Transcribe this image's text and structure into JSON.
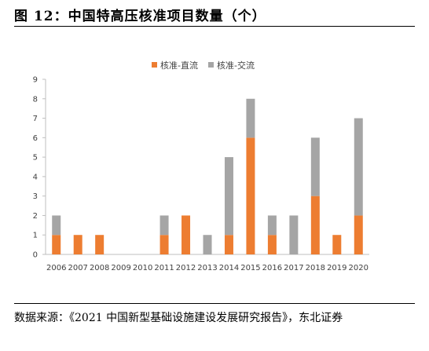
{
  "title": "图 12：中国特高压核准项目数量（个）",
  "source": "数据来源：《2021 中国新型基础设施建设发展研究报告》，东北证券",
  "chart_data": {
    "type": "bar",
    "stacked": true,
    "categories": [
      "2006",
      "2007",
      "2008",
      "2009",
      "2010",
      "2011",
      "2012",
      "2013",
      "2014",
      "2015",
      "2016",
      "2017",
      "2018",
      "2019",
      "2020"
    ],
    "series": [
      {
        "name": "核准-直流",
        "color": "#ED7D31",
        "values": [
          1,
          1,
          1,
          0,
          0,
          1,
          2,
          0,
          1,
          6,
          1,
          0,
          3,
          1,
          2
        ]
      },
      {
        "name": "核准-交流",
        "color": "#A5A5A5",
        "values": [
          1,
          0,
          0,
          0,
          0,
          1,
          0,
          1,
          4,
          2,
          1,
          2,
          3,
          0,
          5
        ]
      }
    ],
    "ylim": [
      0,
      9
    ],
    "yticks": [
      0,
      1,
      2,
      3,
      4,
      5,
      6,
      7,
      8,
      9
    ],
    "legend_position": "top-center",
    "grid": false
  }
}
